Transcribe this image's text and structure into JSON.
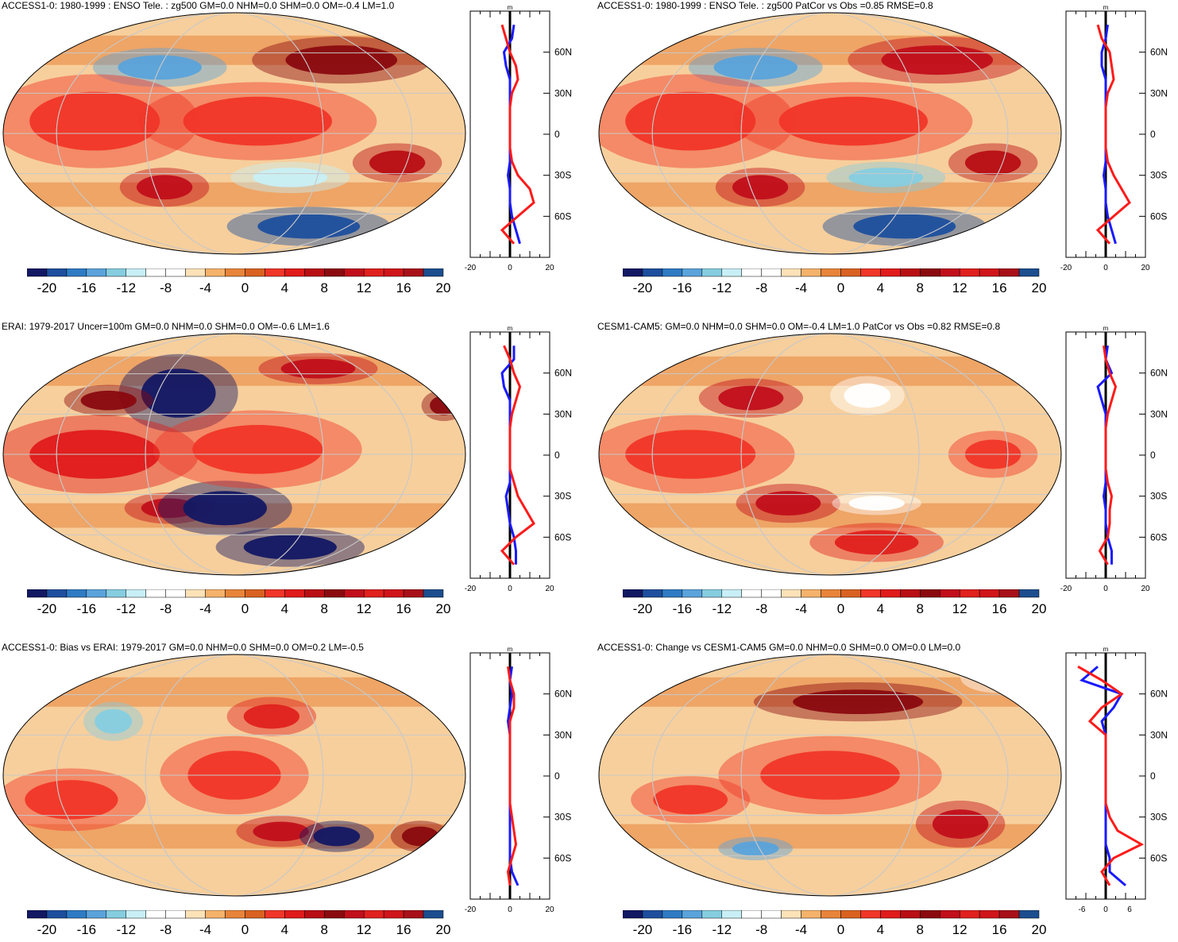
{
  "colorbar": {
    "labels": [
      "-20",
      "-16",
      "-12",
      "-8",
      "-4",
      "0",
      "4",
      "8",
      "12",
      "16",
      "20"
    ],
    "colors": [
      "#131863",
      "#1d4f9e",
      "#2e7bc4",
      "#5aa3db",
      "#86cde0",
      "#c8eff5",
      "#ffffff",
      "#ffffff",
      "#fde2b8",
      "#f5b26b",
      "#e8843a",
      "#d96221",
      "#f03628",
      "#e01b1b",
      "#b80e14",
      "#8a0a0f",
      "#c10f1b",
      "#e0211e",
      "#d0151a",
      "#a81019",
      "#1c4e8f"
    ]
  },
  "profile_axis": {
    "unit": "m",
    "lat_labels": [
      "60N",
      "30N",
      "0",
      "30S",
      "60S"
    ],
    "x_labels": [
      "-20",
      "0",
      "20"
    ],
    "x_labels_alt": [
      "-6",
      "0",
      "6"
    ]
  },
  "panels": [
    {
      "id": "p1",
      "title": "ACCESS1-0: 1980-1999 : ENSO Tele. : zg500 GM=0.0 NHM=0.0 SHM=0.0 OM=-0.4 LM=1.0",
      "xlabels": "x_labels"
    },
    {
      "id": "p2",
      "title": "ACCESS1-0: 1980-1999 : ENSO Tele. : zg500 PatCor vs Obs =0.85 RMSE=0.8",
      "xlabels": "x_labels"
    },
    {
      "id": "p3",
      "title": "ERAI: 1979-2017 Uncer=100m GM=0.0 NHM=0.0 SHM=0.0 OM=-0.6 LM=1.6",
      "xlabels": "x_labels"
    },
    {
      "id": "p4",
      "title": "CESM1-CAM5: GM=0.0 NHM=0.0 SHM=0.0 OM=-0.4 LM=1.0 PatCor vs Obs =0.82 RMSE=0.8",
      "xlabels": "x_labels"
    },
    {
      "id": "p5",
      "title": "ACCESS1-0: Bias vs ERAI: 1979-2017 GM=0.0 NHM=0.0 SHM=0.0 OM=0.2 LM=-0.5",
      "xlabels": "x_labels"
    },
    {
      "id": "p6",
      "title": "ACCESS1-0: Change vs CESM1-CAM5 GM=0.0 NHM=0.0 SHM=0.0 OM=0.0 LM=0.0",
      "xlabels": "x_labels_alt"
    }
  ],
  "chart_data": {
    "type": "contour-map-panels",
    "variable": "zg500",
    "units": "m",
    "colorbar_levels": [
      -20,
      -18,
      -16,
      -14,
      -12,
      -10,
      -8,
      -6,
      -4,
      -2,
      0,
      2,
      4,
      6,
      8,
      10,
      12,
      14,
      16,
      18,
      20
    ],
    "zonal_mean_profiles": {
      "latitudes": [
        80,
        70,
        60,
        50,
        40,
        30,
        20,
        10,
        0,
        -10,
        -20,
        -30,
        -40,
        -50,
        -60,
        -70,
        -80
      ],
      "p1": {
        "red": [
          -4,
          -2,
          0,
          3,
          4,
          1,
          0,
          0,
          0,
          0,
          1,
          4,
          10,
          12,
          4,
          -4,
          2
        ],
        "blue": [
          2,
          1,
          -3,
          -2,
          0,
          0,
          0,
          0,
          0,
          0,
          0,
          -1,
          0,
          0,
          1,
          3,
          5
        ],
        "xlim": [
          -20,
          20
        ]
      },
      "p2": {
        "red": [
          -4,
          -2,
          2,
          3,
          4,
          1,
          0,
          0,
          0,
          0,
          1,
          4,
          8,
          12,
          4,
          -4,
          2
        ],
        "blue": [
          1,
          0,
          -2,
          -2,
          0,
          0,
          0,
          0,
          0,
          0,
          0,
          -1,
          0,
          0,
          1,
          3,
          5
        ],
        "xlim": [
          -20,
          20
        ]
      },
      "p3": {
        "red": [
          -3,
          0,
          2,
          5,
          3,
          1,
          0,
          0,
          0,
          0,
          2,
          4,
          8,
          12,
          3,
          -4,
          2
        ],
        "blue": [
          2,
          2,
          -4,
          -3,
          0,
          0,
          0,
          0,
          0,
          0,
          0,
          -2,
          -1,
          0,
          2,
          3,
          3
        ],
        "xlim": [
          -20,
          20
        ]
      },
      "p4": {
        "red": [
          -1,
          0,
          2,
          5,
          3,
          1,
          0,
          0,
          0,
          0,
          1,
          3,
          2,
          2,
          1,
          -3,
          1
        ],
        "blue": [
          1,
          0,
          3,
          -4,
          -2,
          0,
          0,
          0,
          0,
          0,
          0,
          -1,
          0,
          0,
          1,
          3,
          3
        ],
        "xlim": [
          -20,
          20
        ]
      },
      "p5": {
        "red": [
          -1,
          0,
          2,
          2,
          0,
          0,
          0,
          0,
          0,
          0,
          0,
          1,
          2,
          3,
          1,
          -1,
          0
        ],
        "blue": [
          1,
          0,
          1,
          0,
          -1,
          0,
          0,
          0,
          0,
          0,
          0,
          0,
          0,
          0,
          0,
          1,
          4
        ],
        "xlim": [
          -20,
          20
        ]
      },
      "p6": {
        "red": [
          -7,
          -1,
          4,
          -1,
          -4,
          0,
          0,
          0,
          0,
          0,
          0,
          1,
          3,
          9,
          2,
          -1,
          1
        ],
        "blue": [
          -2,
          -6,
          4,
          2,
          -1,
          0,
          0,
          0,
          0,
          0,
          0,
          0,
          0,
          0,
          1,
          1,
          5
        ],
        "xlim": [
          -10,
          10
        ]
      }
    }
  }
}
